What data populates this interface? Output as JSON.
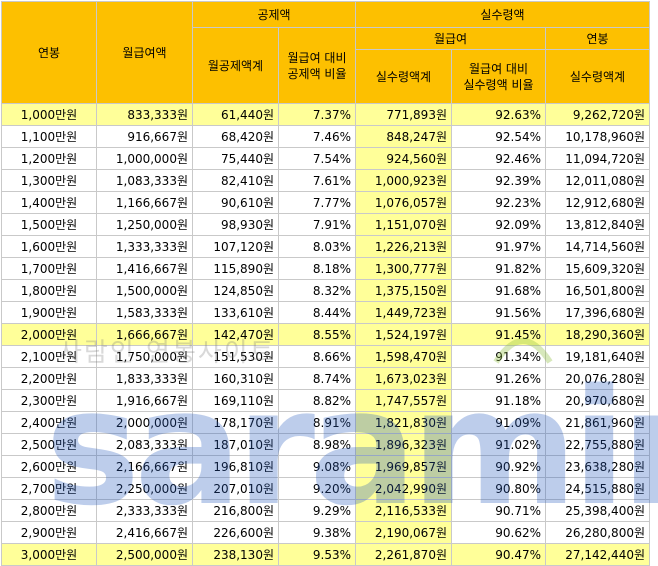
{
  "headers": {
    "annual": "연봉",
    "monthly_gross": "월급여액",
    "deductions": "공제액",
    "monthly_deduction_total": "월공제액계",
    "deduction_ratio": "월급여 대비\n공제액 비율",
    "net_pay": "실수령액",
    "monthly": "월급여",
    "monthly_net_total": "실수령액계",
    "net_ratio": "월급여 대비\n실수령액 비율",
    "annual_sub": "연봉",
    "annual_net_total": "실수령액계"
  },
  "watermark": {
    "text": "사람인 연봉사이트",
    "brand": "saramin"
  },
  "rows": [
    {
      "annual": "1,000만원",
      "monthly": "833,333원",
      "deduction": "61,440원",
      "deduction_ratio": "7.37%",
      "net": "771,893원",
      "net_ratio": "92.63%",
      "annual_net": "9,262,720원",
      "highlight": true
    },
    {
      "annual": "1,100만원",
      "monthly": "916,667원",
      "deduction": "68,420원",
      "deduction_ratio": "7.46%",
      "net": "848,247원",
      "net_ratio": "92.54%",
      "annual_net": "10,178,960원",
      "highlight": false
    },
    {
      "annual": "1,200만원",
      "monthly": "1,000,000원",
      "deduction": "75,440원",
      "deduction_ratio": "7.54%",
      "net": "924,560원",
      "net_ratio": "92.46%",
      "annual_net": "11,094,720원",
      "highlight": false
    },
    {
      "annual": "1,300만원",
      "monthly": "1,083,333원",
      "deduction": "82,410원",
      "deduction_ratio": "7.61%",
      "net": "1,000,923원",
      "net_ratio": "92.39%",
      "annual_net": "12,011,080원",
      "highlight": false
    },
    {
      "annual": "1,400만원",
      "monthly": "1,166,667원",
      "deduction": "90,610원",
      "deduction_ratio": "7.77%",
      "net": "1,076,057원",
      "net_ratio": "92.23%",
      "annual_net": "12,912,680원",
      "highlight": false
    },
    {
      "annual": "1,500만원",
      "monthly": "1,250,000원",
      "deduction": "98,930원",
      "deduction_ratio": "7.91%",
      "net": "1,151,070원",
      "net_ratio": "92.09%",
      "annual_net": "13,812,840원",
      "highlight": false
    },
    {
      "annual": "1,600만원",
      "monthly": "1,333,333원",
      "deduction": "107,120원",
      "deduction_ratio": "8.03%",
      "net": "1,226,213원",
      "net_ratio": "91.97%",
      "annual_net": "14,714,560원",
      "highlight": false
    },
    {
      "annual": "1,700만원",
      "monthly": "1,416,667원",
      "deduction": "115,890원",
      "deduction_ratio": "8.18%",
      "net": "1,300,777원",
      "net_ratio": "91.82%",
      "annual_net": "15,609,320원",
      "highlight": false
    },
    {
      "annual": "1,800만원",
      "monthly": "1,500,000원",
      "deduction": "124,850원",
      "deduction_ratio": "8.32%",
      "net": "1,375,150원",
      "net_ratio": "91.68%",
      "annual_net": "16,501,800원",
      "highlight": false
    },
    {
      "annual": "1,900만원",
      "monthly": "1,583,333원",
      "deduction": "133,610원",
      "deduction_ratio": "8.44%",
      "net": "1,449,723원",
      "net_ratio": "91.56%",
      "annual_net": "17,396,680원",
      "highlight": false
    },
    {
      "annual": "2,000만원",
      "monthly": "1,666,667원",
      "deduction": "142,470원",
      "deduction_ratio": "8.55%",
      "net": "1,524,197원",
      "net_ratio": "91.45%",
      "annual_net": "18,290,360원",
      "highlight": true
    },
    {
      "annual": "2,100만원",
      "monthly": "1,750,000원",
      "deduction": "151,530원",
      "deduction_ratio": "8.66%",
      "net": "1,598,470원",
      "net_ratio": "91.34%",
      "annual_net": "19,181,640원",
      "highlight": false
    },
    {
      "annual": "2,200만원",
      "monthly": "1,833,333원",
      "deduction": "160,310원",
      "deduction_ratio": "8.74%",
      "net": "1,673,023원",
      "net_ratio": "91.26%",
      "annual_net": "20,076,280원",
      "highlight": false
    },
    {
      "annual": "2,300만원",
      "monthly": "1,916,667원",
      "deduction": "169,110원",
      "deduction_ratio": "8.82%",
      "net": "1,747,557원",
      "net_ratio": "91.18%",
      "annual_net": "20,970,680원",
      "highlight": false
    },
    {
      "annual": "2,400만원",
      "monthly": "2,000,000원",
      "deduction": "178,170원",
      "deduction_ratio": "8.91%",
      "net": "1,821,830원",
      "net_ratio": "91.09%",
      "annual_net": "21,861,960원",
      "highlight": false
    },
    {
      "annual": "2,500만원",
      "monthly": "2,083,333원",
      "deduction": "187,010원",
      "deduction_ratio": "8.98%",
      "net": "1,896,323원",
      "net_ratio": "91.02%",
      "annual_net": "22,755,880원",
      "highlight": false
    },
    {
      "annual": "2,600만원",
      "monthly": "2,166,667원",
      "deduction": "196,810원",
      "deduction_ratio": "9.08%",
      "net": "1,969,857원",
      "net_ratio": "90.92%",
      "annual_net": "23,638,280원",
      "highlight": false
    },
    {
      "annual": "2,700만원",
      "monthly": "2,250,000원",
      "deduction": "207,010원",
      "deduction_ratio": "9.20%",
      "net": "2,042,990원",
      "net_ratio": "90.80%",
      "annual_net": "24,515,880원",
      "highlight": false
    },
    {
      "annual": "2,800만원",
      "monthly": "2,333,333원",
      "deduction": "216,800원",
      "deduction_ratio": "9.29%",
      "net": "2,116,533원",
      "net_ratio": "90.71%",
      "annual_net": "25,398,400원",
      "highlight": false
    },
    {
      "annual": "2,900만원",
      "monthly": "2,416,667원",
      "deduction": "226,600원",
      "deduction_ratio": "9.38%",
      "net": "2,190,067원",
      "net_ratio": "90.62%",
      "annual_net": "26,280,800원",
      "highlight": false
    },
    {
      "annual": "3,000만원",
      "monthly": "2,500,000원",
      "deduction": "238,130원",
      "deduction_ratio": "9.53%",
      "net": "2,261,870원",
      "net_ratio": "90.47%",
      "annual_net": "27,142,440원",
      "highlight": true
    }
  ]
}
